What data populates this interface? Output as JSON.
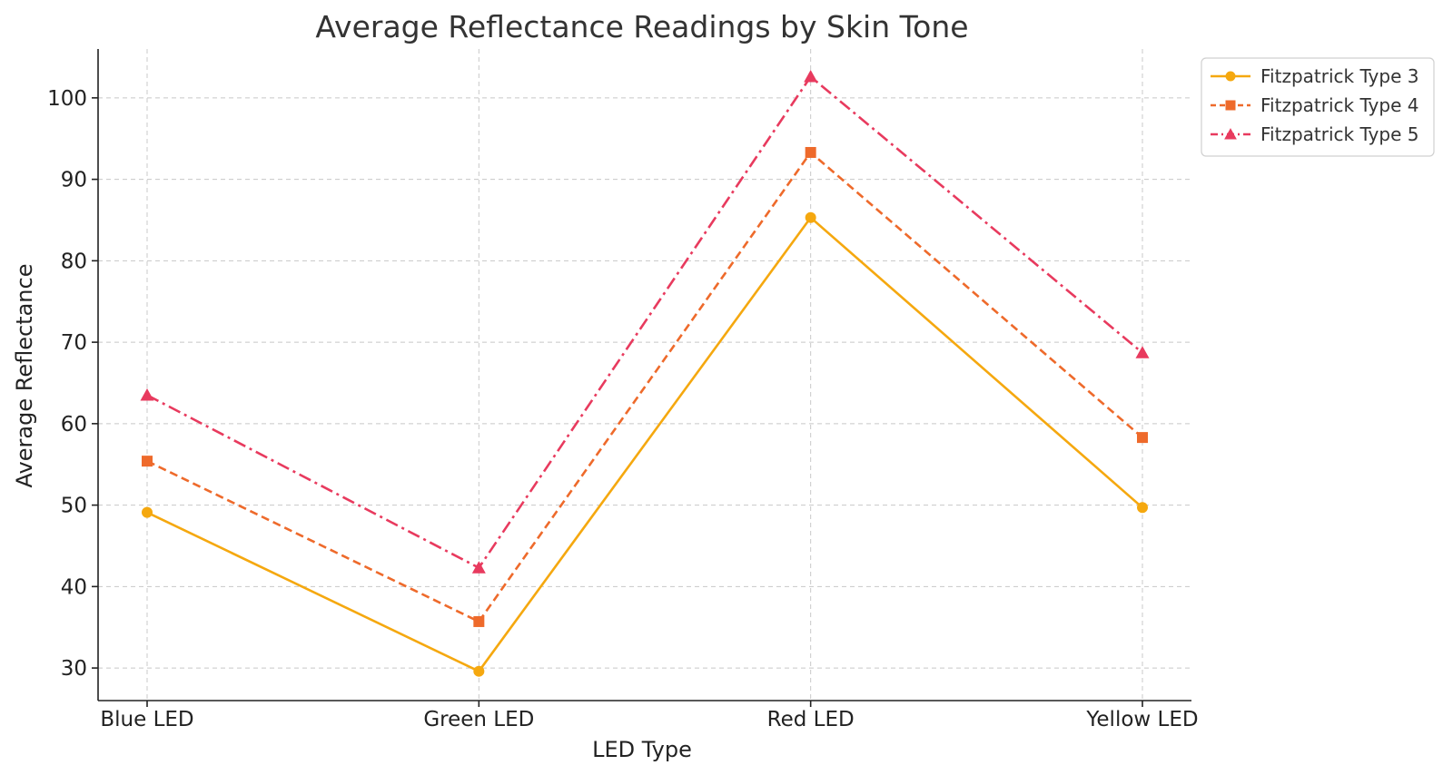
{
  "chart_data": {
    "type": "line",
    "title": "Average Reflectance Readings by Skin Tone",
    "xlabel": "LED Type",
    "ylabel": "Average Reflectance",
    "categories": [
      "Blue LED",
      "Green LED",
      "Red LED",
      "Yellow LED"
    ],
    "ylim": [
      26,
      106
    ],
    "yticks": [
      30,
      40,
      50,
      60,
      70,
      80,
      90,
      100
    ],
    "grid": true,
    "legend_position": "top-right",
    "series": [
      {
        "name": "Fitzpatrick Type 3",
        "values": [
          49.1,
          29.6,
          85.3,
          49.7
        ],
        "color": "#F5A80F",
        "marker": "circle",
        "line_style": "solid"
      },
      {
        "name": "Fitzpatrick Type 4",
        "values": [
          55.4,
          35.7,
          93.3,
          58.3
        ],
        "color": "#EE6A2B",
        "marker": "square",
        "line_style": "dashed"
      },
      {
        "name": "Fitzpatrick Type 5",
        "values": [
          63.5,
          42.3,
          102.6,
          68.7
        ],
        "color": "#E83A5E",
        "marker": "triangle",
        "line_style": "dashdot"
      }
    ]
  }
}
